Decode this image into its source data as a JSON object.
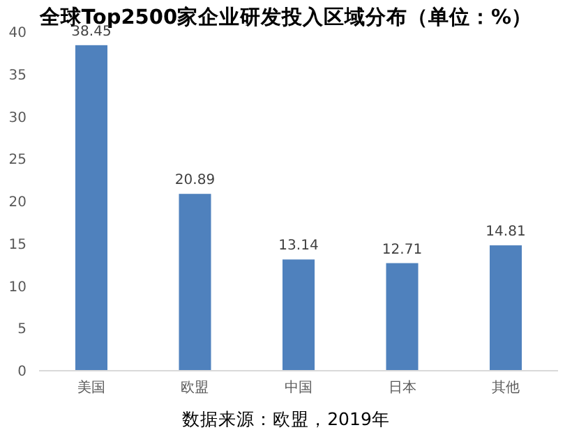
{
  "chart_data": {
    "type": "bar",
    "title": "全球Top2500家企业研发投入区域分布（单位：%）",
    "categories": [
      "美国",
      "欧盟",
      "中国",
      "日本",
      "其他"
    ],
    "values": [
      38.45,
      20.89,
      13.14,
      12.71,
      14.81
    ],
    "color": "#4f81bd",
    "ylim": [
      0,
      40
    ],
    "yticks": [
      0,
      5,
      10,
      15,
      20,
      25,
      30,
      35,
      40
    ],
    "data_labels": true,
    "grid": false,
    "annotations": [
      "数据来源：欧盟，2019年"
    ]
  }
}
